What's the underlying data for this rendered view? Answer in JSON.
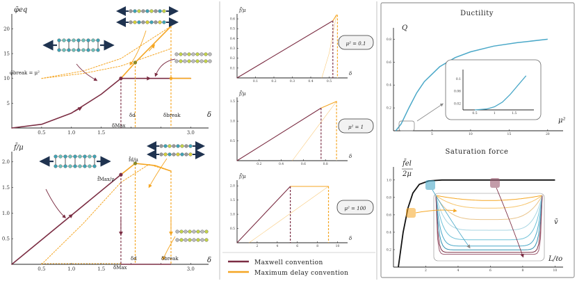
{
  "colors": {
    "maxwell": "#7b2d43",
    "delay": "#f5a623",
    "ductility": "#4aa8c8",
    "saturation": "#111111",
    "ghost": "#cccccc"
  },
  "legend": {
    "maxwell": "Maxwell convention",
    "delay": "Maximum delay convention"
  },
  "labels": {
    "phi_axis": "φ̄eq",
    "f_axis": "f̄/μ",
    "delta": "δ",
    "phi_break": "φ̄break = μ²",
    "delta_max": "δ̄Max",
    "delta_d": "δ̄d",
    "delta_break": "δ̄break",
    "f_max": "f̄Max/μ",
    "f_d": "f̄d/μ",
    "mu2_01": "μ² = 0.1",
    "mu2_1": "μ² = 1",
    "mu2_100": "μ² = 100",
    "ductility_title": "Ductility",
    "q_axis": "Q",
    "mu2_axis": "μ²",
    "saturation_title": "Saturation force",
    "fel_num": "f̄el",
    "fel_den": "2μ",
    "l_axis": "L/ℓo",
    "v_axis": "v̄"
  },
  "chart_data": [
    {
      "id": "energy",
      "type": "line",
      "xlabel": "δ",
      "ylabel": "φ̄eq",
      "xlim": [
        0,
        3.3
      ],
      "ylim": [
        0,
        23
      ],
      "xticks": [
        0.5,
        1.0,
        1.5,
        2.0,
        2.5,
        3.0
      ],
      "yticks": [
        5,
        10,
        15,
        20
      ],
      "xtick_labels": [
        "0.5",
        "1.0",
        "1.5",
        "2.0",
        "2.5",
        "3.0"
      ],
      "ytick_labels": [
        "5",
        "10",
        "15",
        "20"
      ],
      "marks": {
        "delta_max": 1.83,
        "delta_d": 2.07,
        "delta_break": 2.67,
        "phi_break": 10,
        "phi_d": 13.2
      },
      "series": [
        {
          "color": "maxwell",
          "style": "solid",
          "points": [
            [
              0,
              0
            ],
            [
              0.5,
              0.75
            ],
            [
              1.0,
              3.0
            ],
            [
              1.5,
              6.8
            ],
            [
              1.83,
              10
            ],
            [
              2.67,
              10
            ],
            [
              3.0,
              10
            ]
          ]
        },
        {
          "color": "delay",
          "style": "solid",
          "points": [
            [
              1.83,
              10
            ],
            [
              2.07,
              13.2
            ],
            [
              2.67,
              20.5
            ]
          ]
        },
        {
          "color": "delay",
          "style": "dotted",
          "points": [
            [
              0.5,
              10
            ],
            [
              1.2,
              11.5
            ],
            [
              1.83,
              14
            ],
            [
              2.67,
              20.5
            ]
          ]
        },
        {
          "color": "delay",
          "style": "dotted",
          "points": [
            [
              0.5,
              10
            ],
            [
              1.2,
              11
            ],
            [
              1.83,
              12.5
            ],
            [
              2.67,
              16
            ]
          ]
        },
        {
          "color": "delay",
          "style": "solid",
          "points": [
            [
              2.67,
              10
            ],
            [
              3.0,
              10
            ]
          ]
        }
      ]
    },
    {
      "id": "force",
      "type": "line",
      "xlabel": "δ",
      "ylabel": "f̄/μ",
      "xlim": [
        0,
        3.3
      ],
      "ylim": [
        0,
        2.2
      ],
      "xticks": [
        0.5,
        1.0,
        1.5,
        2.0,
        2.5,
        3.0
      ],
      "yticks": [
        0.5,
        1.0,
        1.5,
        2.0
      ],
      "xtick_labels": [
        "0.5",
        "1.0",
        "1.5",
        "2.0",
        "2.5",
        "3.0"
      ],
      "ytick_labels": [
        "0.5",
        "1.0",
        "1.5",
        "2.0"
      ],
      "marks": {
        "delta_max": 1.83,
        "delta_d": 2.07,
        "delta_break": 2.67,
        "f_max": 1.75,
        "f_d": 1.97
      },
      "series": [
        {
          "color": "maxwell",
          "style": "solid",
          "points": [
            [
              0,
              0
            ],
            [
              1.83,
              1.75
            ]
          ]
        },
        {
          "color": "delay",
          "style": "solid",
          "points": [
            [
              1.83,
              1.75
            ],
            [
              2.07,
              1.97
            ],
            [
              2.4,
              1.93
            ],
            [
              2.67,
              1.82
            ]
          ]
        },
        {
          "color": "delay",
          "style": "dotted",
          "points": [
            [
              0.5,
              0
            ],
            [
              1.2,
              0.8
            ],
            [
              1.83,
              1.6
            ],
            [
              2.3,
              1.95
            ],
            [
              2.67,
              1.82
            ]
          ]
        }
      ]
    },
    {
      "id": "mu01",
      "type": "line",
      "xlabel": "δ",
      "ylabel": "f̄/μ",
      "xlim": [
        0,
        0.6
      ],
      "ylim": [
        0,
        0.65
      ],
      "xticks": [
        0.1,
        0.2,
        0.3,
        0.4,
        0.5
      ],
      "yticks": [
        0.1,
        0.2,
        0.3,
        0.4,
        0.5,
        0.6
      ],
      "xtick_labels": [
        "0.1",
        "0.2",
        "0.3",
        "0.4",
        "0.5"
      ],
      "ytick_labels": [
        "0.1",
        "0.2",
        "0.3",
        "0.4",
        "0.5",
        "0.6"
      ],
      "marks": {
        "drop_m": 0.52,
        "drop_d": 0.545
      },
      "series": [
        {
          "color": "maxwell",
          "style": "solid",
          "points": [
            [
              0,
              0
            ],
            [
              0.52,
              0.58
            ]
          ]
        },
        {
          "color": "delay",
          "style": "solid",
          "points": [
            [
              0.52,
              0.58
            ],
            [
              0.54,
              0.64
            ]
          ]
        },
        {
          "color": "delay",
          "style": "thin",
          "points": [
            [
              0.46,
              0
            ],
            [
              0.5,
              0.25
            ],
            [
              0.54,
              0.64
            ]
          ]
        }
      ]
    },
    {
      "id": "mu1",
      "type": "line",
      "xlabel": "δ",
      "ylabel": "f̄/μ",
      "xlim": [
        0,
        1.0
      ],
      "ylim": [
        0,
        1.6
      ],
      "xticks": [
        0.2,
        0.4,
        0.6,
        0.8
      ],
      "yticks": [
        0.5,
        1.0,
        1.5
      ],
      "xtick_labels": [
        "0.2",
        "0.4",
        "0.6",
        "0.8"
      ],
      "ytick_labels": [
        "0.5",
        "1.0",
        "1.5"
      ],
      "marks": {
        "drop_m": 0.76,
        "drop_d": 0.9
      },
      "series": [
        {
          "color": "maxwell",
          "style": "solid",
          "points": [
            [
              0,
              0
            ],
            [
              0.76,
              1.33
            ]
          ]
        },
        {
          "color": "delay",
          "style": "solid",
          "points": [
            [
              0.76,
              1.33
            ],
            [
              0.86,
              1.45
            ],
            [
              0.9,
              1.5
            ]
          ]
        },
        {
          "color": "delay",
          "style": "thin",
          "points": [
            [
              0.5,
              0
            ],
            [
              0.7,
              0.75
            ],
            [
              0.9,
              1.5
            ]
          ]
        }
      ]
    },
    {
      "id": "mu100",
      "type": "line",
      "xlabel": "δ",
      "ylabel": "f̄/μ",
      "xlim": [
        0,
        11
      ],
      "ylim": [
        0,
        2.2
      ],
      "xticks": [
        2,
        4,
        6,
        8,
        10
      ],
      "yticks": [
        0.5,
        1.0,
        1.5,
        2.0
      ],
      "xtick_labels": [
        "2",
        "4",
        "6",
        "8",
        "10"
      ],
      "ytick_labels": [
        "0.5",
        "1.0",
        "1.5",
        "2.0"
      ],
      "marks": {
        "drop_m": 5.3,
        "drop_d": 9.1
      },
      "series": [
        {
          "color": "maxwell",
          "style": "solid",
          "points": [
            [
              0,
              0
            ],
            [
              5.3,
              1.98
            ]
          ]
        },
        {
          "color": "delay",
          "style": "solid",
          "points": [
            [
              5.3,
              1.98
            ],
            [
              9.1,
              1.98
            ]
          ]
        },
        {
          "color": "delay",
          "style": "thin",
          "points": [
            [
              1.2,
              0
            ],
            [
              9.1,
              1.98
            ]
          ]
        }
      ]
    },
    {
      "id": "ductility",
      "type": "line",
      "title": "Ductility",
      "xlabel": "μ²",
      "ylabel": "Q",
      "xlim": [
        0,
        22
      ],
      "ylim": [
        0,
        0.9
      ],
      "xticks": [
        5,
        10,
        15,
        20
      ],
      "yticks": [
        0.2,
        0.4,
        0.6,
        0.8
      ],
      "xtick_labels": [
        "5",
        "10",
        "15",
        "20"
      ],
      "ytick_labels": [
        "0.2",
        "0.4",
        "0.6",
        "0.8"
      ],
      "series": [
        {
          "color": "ductility",
          "style": "solid",
          "points": [
            [
              0.3,
              0.0
            ],
            [
              1,
              0.06
            ],
            [
              2,
              0.2
            ],
            [
              3,
              0.33
            ],
            [
              4,
              0.43
            ],
            [
              6,
              0.56
            ],
            [
              8,
              0.64
            ],
            [
              10,
              0.69
            ],
            [
              13,
              0.74
            ],
            [
              16,
              0.77
            ],
            [
              20,
              0.8
            ]
          ]
        }
      ],
      "inset": {
        "xlim": [
          0.2,
          2.0
        ],
        "ylim": [
          0,
          0.13
        ],
        "xticks": [
          0.5,
          1,
          1.5
        ],
        "yticks": [
          0.02,
          0.06,
          0.1
        ],
        "xtick_labels": [
          "0.5",
          "1",
          "1.5"
        ],
        "ytick_labels": [
          "0.02",
          "0.06",
          "0.1"
        ],
        "points": [
          [
            0.5,
            0.0
          ],
          [
            0.8,
            0.003
          ],
          [
            1.0,
            0.01
          ],
          [
            1.2,
            0.025
          ],
          [
            1.4,
            0.05
          ],
          [
            1.6,
            0.08
          ],
          [
            1.8,
            0.11
          ]
        ]
      }
    },
    {
      "id": "saturation",
      "type": "line",
      "title": "Saturation force",
      "xlabel": "L/ℓo",
      "ylabel": "f̄el/2μ",
      "xlim": [
        0,
        10.5
      ],
      "ylim": [
        0,
        1.15
      ],
      "xticks": [
        2,
        4,
        6,
        8,
        10
      ],
      "yticks": [
        0.2,
        0.4,
        0.6,
        0.8,
        1.0
      ],
      "xtick_labels": [
        "2",
        "4",
        "6",
        "8",
        "10"
      ],
      "ytick_labels": [
        "0.2",
        "0.4",
        "0.6",
        "0.8",
        "1.0"
      ],
      "series": [
        {
          "color": "saturation",
          "style": "solid",
          "points": [
            [
              0.3,
              0.0
            ],
            [
              0.6,
              0.4
            ],
            [
              0.9,
              0.68
            ],
            [
              1.2,
              0.85
            ],
            [
              1.6,
              0.95
            ],
            [
              2.2,
              0.99
            ],
            [
              3,
              1.0
            ],
            [
              10,
              1.0
            ]
          ]
        }
      ],
      "inset_profiles": {
        "xlabel": "v̄",
        "colors": [
          "#f5a623",
          "#f7c56b",
          "#e9c48a",
          "#a8d5e2",
          "#6fc1d8",
          "#4aa8c8",
          "#2f8fb0",
          "#7b2d43",
          "#9b5a70"
        ],
        "depths": [
          0.08,
          0.2,
          0.38,
          0.55,
          0.7,
          0.8,
          0.86,
          0.9,
          0.93
        ],
        "flatness": [
          1,
          1.5,
          2,
          3,
          4,
          6,
          9,
          14,
          20
        ]
      }
    }
  ]
}
